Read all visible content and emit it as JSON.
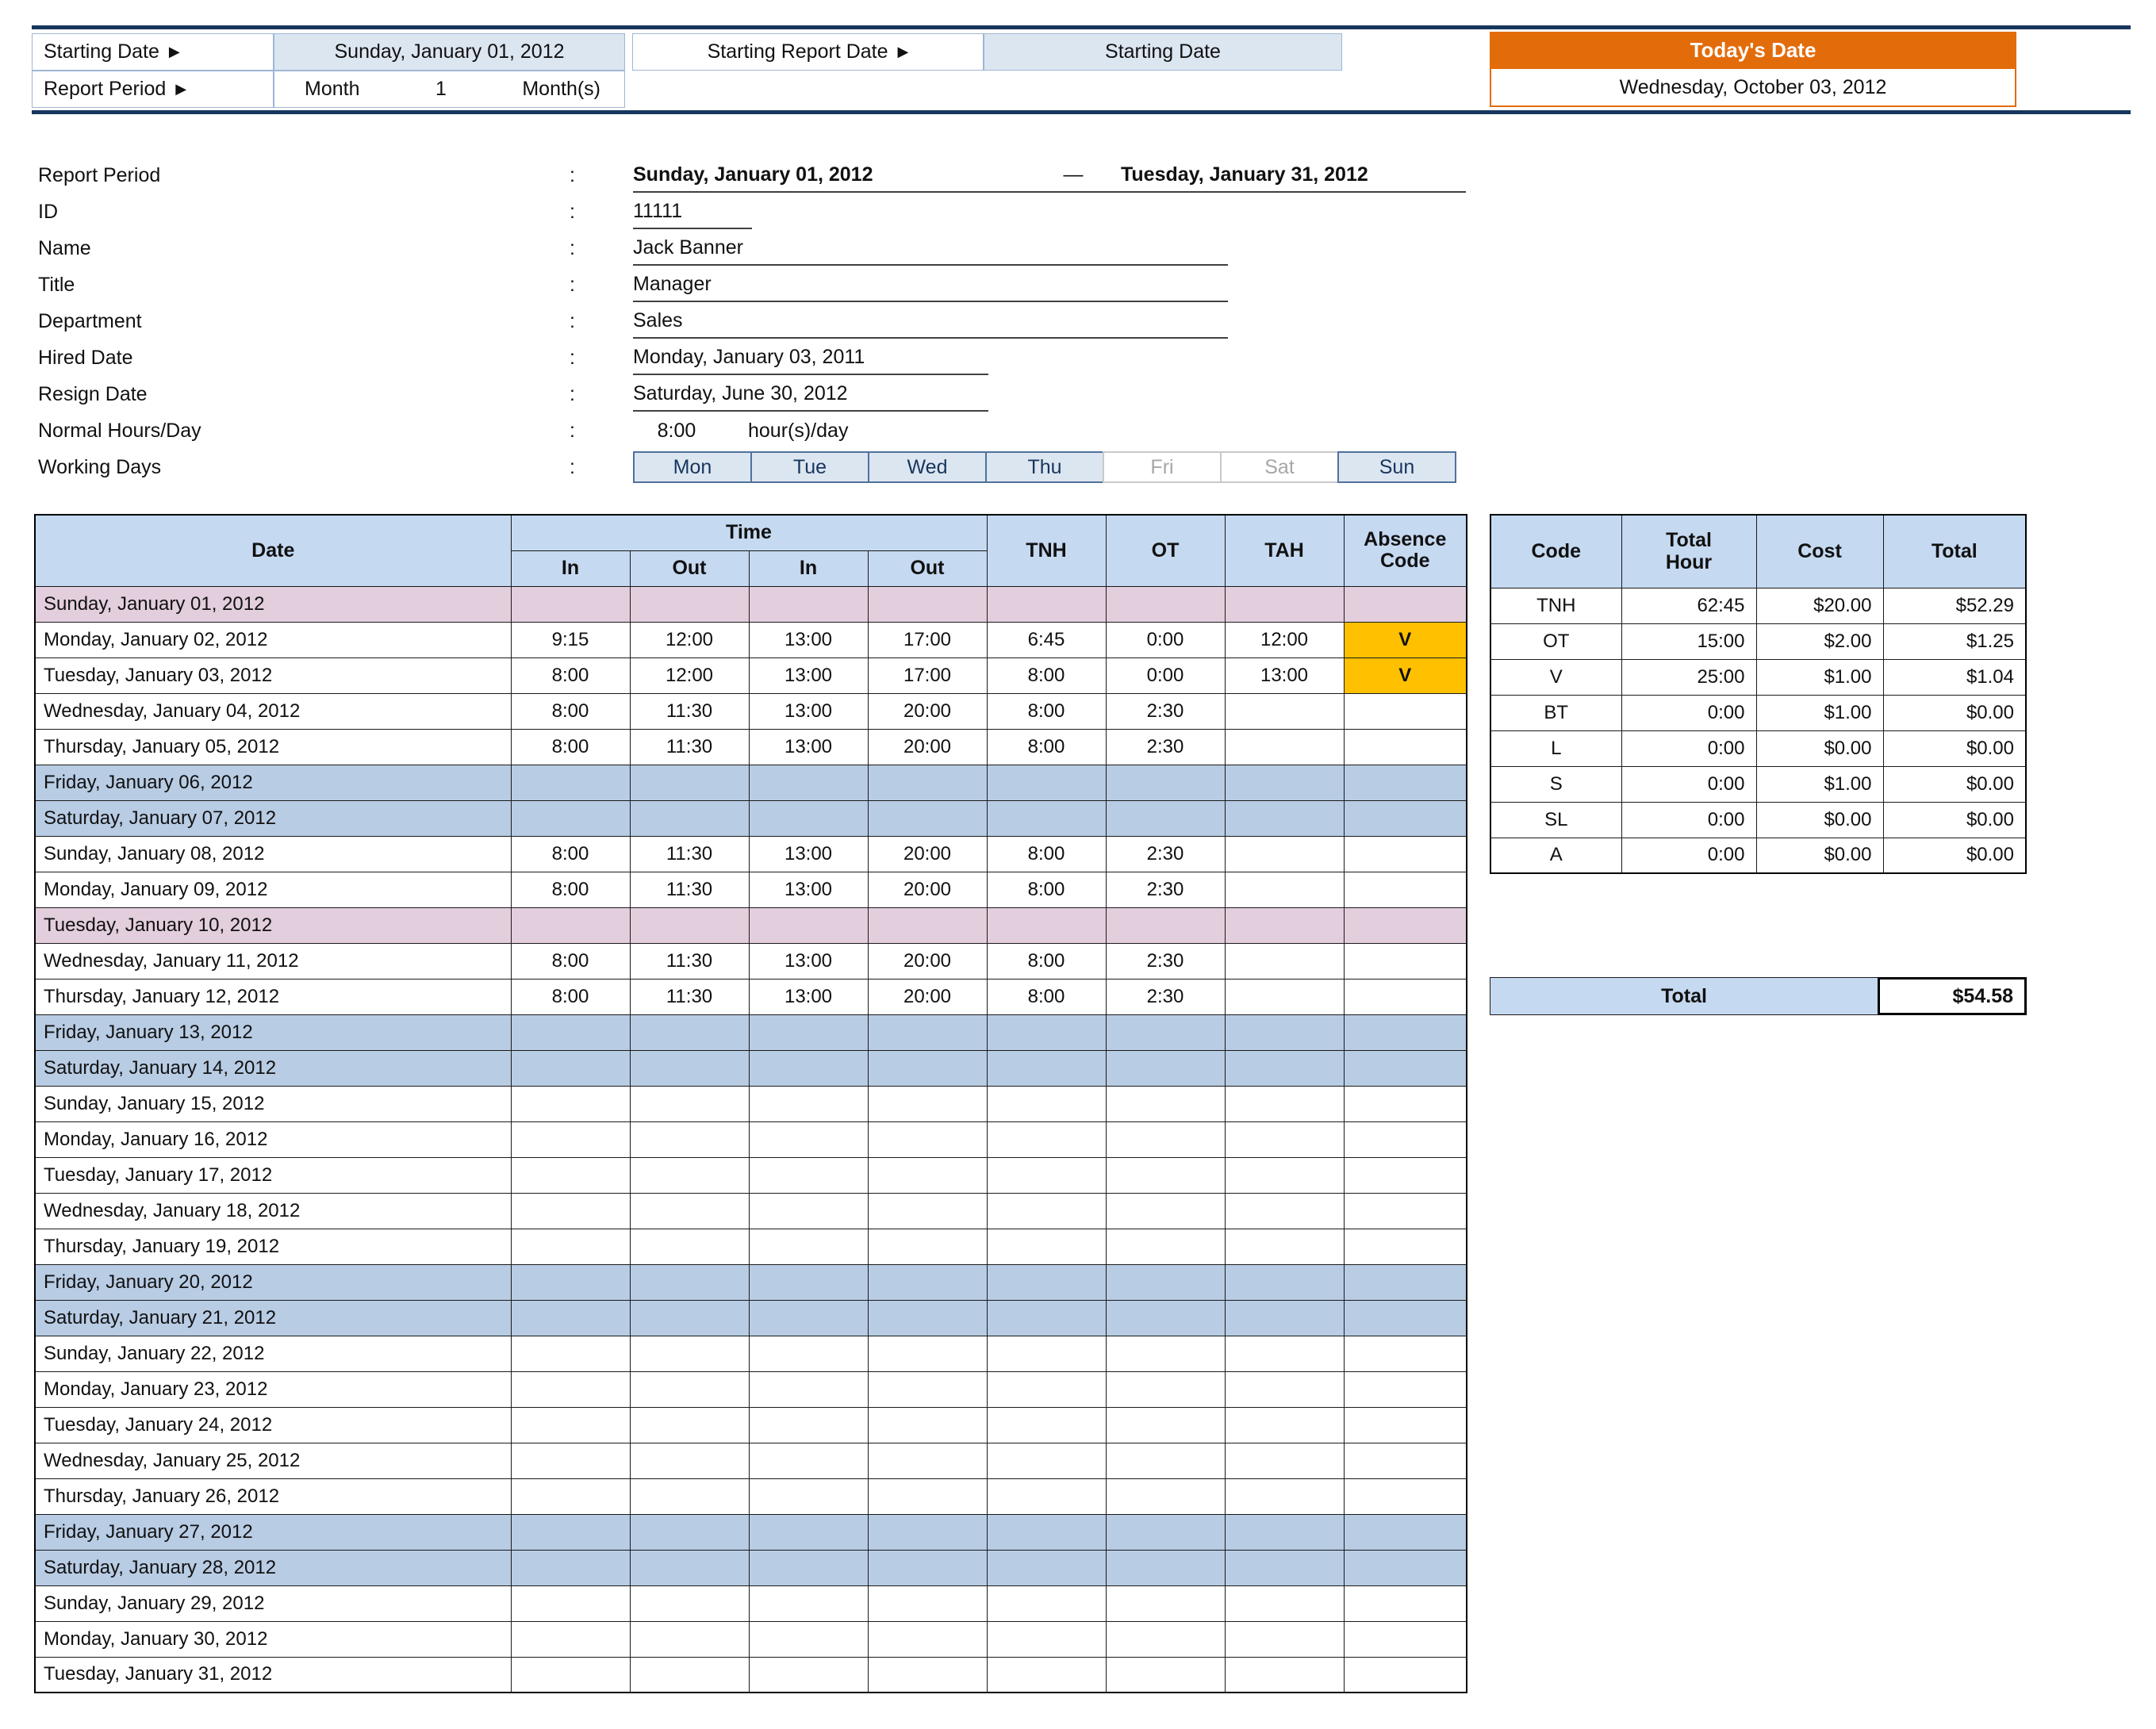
{
  "topbar": {
    "arrow": "▶",
    "starting_date_label": "Starting Date",
    "starting_date_value": "Sunday, January 01, 2012",
    "starting_report_date_label": "Starting Report Date",
    "starting_report_date_value": "Starting Date",
    "report_period_label": "Report Period",
    "month_label": "Month",
    "month_value": "1",
    "month_suffix": "Month(s)",
    "todays_date_label": "Today's Date",
    "todays_date_value": "Wednesday, October 03, 2012"
  },
  "info": {
    "colon": ":",
    "report_period": {
      "label": "Report Period",
      "start": "Sunday, January 01, 2012",
      "dash": "—",
      "end": "Tuesday, January 31, 2012"
    },
    "id": {
      "label": "ID",
      "value": "11111"
    },
    "name": {
      "label": "Name",
      "value": "Jack Banner"
    },
    "title": {
      "label": "Title",
      "value": "Manager"
    },
    "department": {
      "label": "Department",
      "value": "Sales"
    },
    "hired_date": {
      "label": "Hired Date",
      "value": "Monday, January 03, 2011"
    },
    "resign_date": {
      "label": "Resign Date",
      "value": "Saturday, June 30, 2012"
    },
    "normal_hours": {
      "label": "Normal Hours/Day",
      "value": "8:00",
      "suffix": "hour(s)/day"
    },
    "working_days": {
      "label": "Working Days",
      "days": [
        {
          "name": "Mon",
          "active": true
        },
        {
          "name": "Tue",
          "active": true
        },
        {
          "name": "Wed",
          "active": true
        },
        {
          "name": "Thu",
          "active": true
        },
        {
          "name": "Fri",
          "active": false
        },
        {
          "name": "Sat",
          "active": false
        },
        {
          "name": "Sun",
          "active": true
        }
      ]
    }
  },
  "timesheet": {
    "headers": {
      "date": "Date",
      "time": "Time",
      "in1": "In",
      "out1": "Out",
      "in2": "In",
      "out2": "Out",
      "tnh": "TNH",
      "ot": "OT",
      "tah": "TAH",
      "absence_line1": "Absence",
      "absence_line2": "Code"
    },
    "rows": [
      {
        "date": "Sunday, January 01, 2012",
        "type": "holiday"
      },
      {
        "date": "Monday, January 02, 2012",
        "type": "work",
        "in1": "9:15",
        "out1": "12:00",
        "in2": "13:00",
        "out2": "17:00",
        "tnh": "6:45",
        "ot": "0:00",
        "tah": "12:00",
        "abs": "V"
      },
      {
        "date": "Tuesday, January 03, 2012",
        "type": "work",
        "in1": "8:00",
        "out1": "12:00",
        "in2": "13:00",
        "out2": "17:00",
        "tnh": "8:00",
        "ot": "0:00",
        "tah": "13:00",
        "abs": "V"
      },
      {
        "date": "Wednesday, January 04, 2012",
        "type": "work",
        "in1": "8:00",
        "out1": "11:30",
        "in2": "13:00",
        "out2": "20:00",
        "tnh": "8:00",
        "ot": "2:30"
      },
      {
        "date": "Thursday, January 05, 2012",
        "type": "work",
        "in1": "8:00",
        "out1": "11:30",
        "in2": "13:00",
        "out2": "20:00",
        "tnh": "8:00",
        "ot": "2:30"
      },
      {
        "date": "Friday, January 06, 2012",
        "type": "weekend"
      },
      {
        "date": "Saturday, January 07, 2012",
        "type": "weekend"
      },
      {
        "date": "Sunday, January 08, 2012",
        "type": "work",
        "in1": "8:00",
        "out1": "11:30",
        "in2": "13:00",
        "out2": "20:00",
        "tnh": "8:00",
        "ot": "2:30"
      },
      {
        "date": "Monday, January 09, 2012",
        "type": "work",
        "in1": "8:00",
        "out1": "11:30",
        "in2": "13:00",
        "out2": "20:00",
        "tnh": "8:00",
        "ot": "2:30"
      },
      {
        "date": "Tuesday, January 10, 2012",
        "type": "holiday"
      },
      {
        "date": "Wednesday, January 11, 2012",
        "type": "work",
        "in1": "8:00",
        "out1": "11:30",
        "in2": "13:00",
        "out2": "20:00",
        "tnh": "8:00",
        "ot": "2:30"
      },
      {
        "date": "Thursday, January 12, 2012",
        "type": "work",
        "in1": "8:00",
        "out1": "11:30",
        "in2": "13:00",
        "out2": "20:00",
        "tnh": "8:00",
        "ot": "2:30"
      },
      {
        "date": "Friday, January 13, 2012",
        "type": "weekend"
      },
      {
        "date": "Saturday, January 14, 2012",
        "type": "weekend"
      },
      {
        "date": "Sunday, January 15, 2012",
        "type": "empty"
      },
      {
        "date": "Monday, January 16, 2012",
        "type": "empty"
      },
      {
        "date": "Tuesday, January 17, 2012",
        "type": "empty"
      },
      {
        "date": "Wednesday, January 18, 2012",
        "type": "empty"
      },
      {
        "date": "Thursday, January 19, 2012",
        "type": "empty"
      },
      {
        "date": "Friday, January 20, 2012",
        "type": "weekend"
      },
      {
        "date": "Saturday, January 21, 2012",
        "type": "weekend"
      },
      {
        "date": "Sunday, January 22, 2012",
        "type": "empty"
      },
      {
        "date": "Monday, January 23, 2012",
        "type": "empty"
      },
      {
        "date": "Tuesday, January 24, 2012",
        "type": "empty"
      },
      {
        "date": "Wednesday, January 25, 2012",
        "type": "empty"
      },
      {
        "date": "Thursday, January 26, 2012",
        "type": "empty"
      },
      {
        "date": "Friday, January 27, 2012",
        "type": "weekend"
      },
      {
        "date": "Saturday, January 28, 2012",
        "type": "weekend"
      },
      {
        "date": "Sunday, January 29, 2012",
        "type": "empty"
      },
      {
        "date": "Monday, January 30, 2012",
        "type": "empty"
      },
      {
        "date": "Tuesday, January 31, 2012",
        "type": "empty"
      }
    ]
  },
  "summary": {
    "headers": {
      "code": "Code",
      "total_hour_line1": "Total",
      "total_hour_line2": "Hour",
      "cost": "Cost",
      "total": "Total"
    },
    "rows": [
      {
        "code": "TNH",
        "total_hour": "62:45",
        "cost": "$20.00",
        "total": "$52.29"
      },
      {
        "code": "OT",
        "total_hour": "15:00",
        "cost": "$2.00",
        "total": "$1.25"
      },
      {
        "code": "V",
        "total_hour": "25:00",
        "cost": "$1.00",
        "total": "$1.04"
      },
      {
        "code": "BT",
        "total_hour": "0:00",
        "cost": "$1.00",
        "total": "$0.00"
      },
      {
        "code": "L",
        "total_hour": "0:00",
        "cost": "$0.00",
        "total": "$0.00"
      },
      {
        "code": "S",
        "total_hour": "0:00",
        "cost": "$1.00",
        "total": "$0.00"
      },
      {
        "code": "SL",
        "total_hour": "0:00",
        "cost": "$0.00",
        "total": "$0.00"
      },
      {
        "code": "A",
        "total_hour": "0:00",
        "cost": "$0.00",
        "total": "$0.00"
      }
    ],
    "total_label": "Total",
    "total_value": "$54.58"
  },
  "colors": {
    "navy_line": "#17365D",
    "accent_orange": "#E36C0A",
    "header_blue": "#C5D9F1",
    "light_blue": "#DCE6F1",
    "weekend_blue": "#B8CCE4",
    "holiday_pink": "#E3CEDD",
    "absence_yellow": "#FFC000"
  }
}
